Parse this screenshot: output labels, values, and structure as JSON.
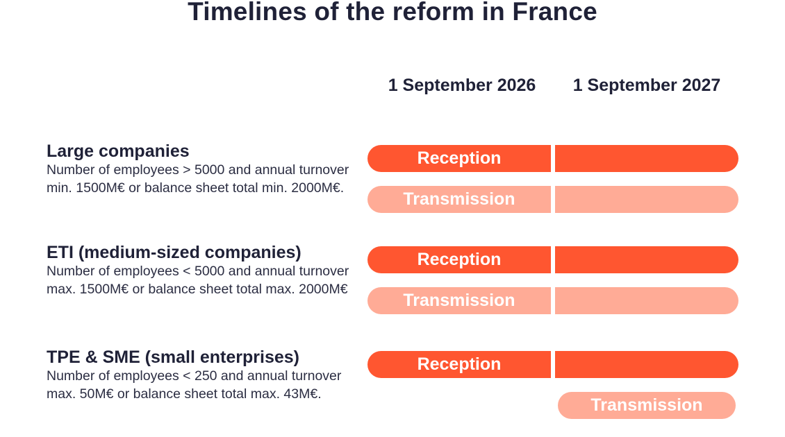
{
  "title": "Timelines of the reform in France",
  "dates": [
    "1 September 2026",
    "1 September 2027"
  ],
  "colors": {
    "reception": "#ff5630",
    "transmission": "#ffab96",
    "text": "#1f2137"
  },
  "companies": [
    {
      "name": "Large companies",
      "description": "Number of employees > 5000 and annual turnover min. 1500M€ or balance sheet total min. 2000M€.",
      "reception_label": "Reception",
      "transmission_label": "Transmission",
      "reception_from": "1 September 2026",
      "transmission_from": "1 September 2026"
    },
    {
      "name": "ETI (medium-sized companies)",
      "description": "Number of employees < 5000 and annual turnover max. 1500M€ or balance sheet total max. 2000M€",
      "reception_label": "Reception",
      "transmission_label": "Transmission",
      "reception_from": "1 September 2026",
      "transmission_from": "1 September 2026"
    },
    {
      "name": "TPE & SME (small enterprises)",
      "description": "Number of employees < 250 and annual turnover max. 50M€ or balance sheet total max. 43M€.",
      "reception_label": "Reception",
      "transmission_label": "Transmission",
      "reception_from": "1 September 2026",
      "transmission_from": "1 September 2027"
    }
  ]
}
